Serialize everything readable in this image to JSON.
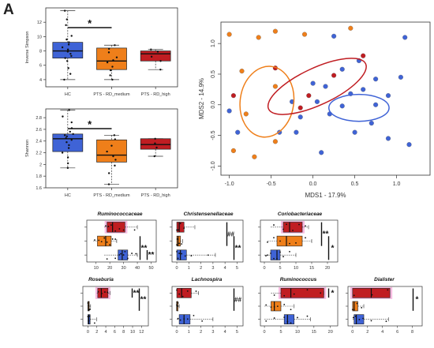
{
  "figure": {
    "panel_label": "A",
    "colors": {
      "hc": "#3f63d6",
      "medium": "#ef7f1a",
      "high": "#c01d22",
      "pink": "#f4a6d7"
    }
  },
  "chart_data": [
    {
      "id": "simpson",
      "type": "box",
      "ylabel": "Inverse Simpson",
      "categories": [
        "HC",
        "PTS - RD_medium",
        "PTS - RD_high"
      ],
      "ylim": [
        3,
        14
      ],
      "yticks": [
        4,
        6,
        8,
        10,
        12
      ],
      "boxes": [
        {
          "q1": 7.0,
          "median": 8.0,
          "q3": 9.2,
          "min": 4.0,
          "max": 13.6,
          "color": "#3f63d6",
          "points": [
            4.0,
            4.8,
            5.6,
            6.6,
            7.0,
            7.3,
            7.6,
            7.9,
            8.0,
            8.2,
            8.5,
            8.9,
            9.2,
            9.6,
            10.1,
            11.6,
            12.4,
            13.6
          ]
        },
        {
          "q1": 5.4,
          "median": 6.6,
          "q3": 8.4,
          "min": 4.0,
          "max": 8.8,
          "color": "#ef7f1a",
          "points": [
            4.0,
            4.6,
            5.3,
            5.8,
            6.4,
            6.7,
            7.1,
            7.8,
            8.3,
            8.8
          ]
        },
        {
          "q1": 6.6,
          "median": 7.6,
          "q3": 8.0,
          "min": 5.4,
          "max": 8.2,
          "color": "#c01d22",
          "points": [
            5.4,
            6.6,
            7.2,
            7.9,
            8.2
          ]
        }
      ],
      "significance": {
        "from": 0,
        "to": 1,
        "label": "*"
      }
    },
    {
      "id": "shannon",
      "type": "box",
      "ylabel": "Shannon",
      "categories": [
        "HC",
        "PTS - RD_medium",
        "PTS - RD_high"
      ],
      "ylim": [
        1.6,
        2.95
      ],
      "yticks": [
        1.6,
        1.8,
        2.0,
        2.2,
        2.4,
        2.6,
        2.8
      ],
      "boxes": [
        {
          "q1": 2.22,
          "median": 2.44,
          "q3": 2.52,
          "min": 1.94,
          "max": 2.93,
          "color": "#3f63d6",
          "points": [
            1.94,
            2.02,
            2.12,
            2.2,
            2.28,
            2.33,
            2.38,
            2.42,
            2.45,
            2.48,
            2.5,
            2.52,
            2.56,
            2.62,
            2.72,
            2.82,
            2.93
          ]
        },
        {
          "q1": 2.04,
          "median": 2.16,
          "q3": 2.42,
          "min": 1.66,
          "max": 2.5,
          "color": "#ef7f1a",
          "points": [
            1.66,
            1.85,
            1.98,
            2.08,
            2.14,
            2.22,
            2.32,
            2.43,
            2.5
          ]
        },
        {
          "q1": 2.26,
          "median": 2.34,
          "q3": 2.44,
          "min": 2.14,
          "max": 2.44,
          "color": "#c01d22",
          "points": [
            2.14,
            2.29,
            2.36,
            2.44
          ]
        }
      ],
      "significance": {
        "from": 0,
        "to": 1,
        "label": "*"
      }
    },
    {
      "id": "mds",
      "type": "scatter",
      "xlabel": "MDS1 - 17.9%",
      "ylabel": "MDS2 - 14.9%",
      "xlim": [
        -1.1,
        1.4
      ],
      "ylim": [
        -1.15,
        1.35
      ],
      "xticks": [
        -1.0,
        -0.5,
        0.0,
        0.5,
        1.0
      ],
      "yticks": [
        -1.0,
        -0.5,
        0.0,
        0.5,
        1.0
      ],
      "series": [
        {
          "color": "#3f63d6",
          "points": [
            [
              0.25,
              1.12
            ],
            [
              1.1,
              1.1
            ],
            [
              0.55,
              0.72
            ],
            [
              0.35,
              0.58
            ],
            [
              1.05,
              0.45
            ],
            [
              0.75,
              0.42
            ],
            [
              0.6,
              0.25
            ],
            [
              0.45,
              0.18
            ],
            [
              0.9,
              0.15
            ],
            [
              0.15,
              0.3
            ],
            [
              0.0,
              0.35
            ],
            [
              0.75,
              0.0
            ],
            [
              0.35,
              -0.02
            ],
            [
              0.05,
              0.05
            ],
            [
              -0.25,
              0.05
            ],
            [
              0.2,
              -0.15
            ],
            [
              -0.15,
              -0.2
            ],
            [
              0.7,
              -0.3
            ],
            [
              0.5,
              -0.45
            ],
            [
              0.9,
              -0.55
            ],
            [
              1.15,
              -0.65
            ],
            [
              0.1,
              -0.78
            ],
            [
              -0.9,
              -0.45
            ],
            [
              -1.0,
              -0.1
            ],
            [
              -0.4,
              -0.45
            ],
            [
              -0.2,
              -0.45
            ]
          ]
        },
        {
          "color": "#ef7f1a",
          "points": [
            [
              -1.0,
              1.15
            ],
            [
              -0.45,
              1.2
            ],
            [
              -0.65,
              1.1
            ],
            [
              -0.1,
              1.15
            ],
            [
              -0.85,
              0.55
            ],
            [
              -0.45,
              0.3
            ],
            [
              -0.8,
              -0.15
            ],
            [
              -0.45,
              -0.6
            ],
            [
              -0.7,
              -0.85
            ],
            [
              -0.95,
              -0.75
            ],
            [
              0.45,
              1.25
            ]
          ]
        },
        {
          "color": "#c01d22",
          "points": [
            [
              -0.45,
              0.6
            ],
            [
              0.25,
              0.48
            ],
            [
              -0.05,
              0.15
            ],
            [
              -0.95,
              0.15
            ],
            [
              -0.15,
              -0.05
            ],
            [
              0.6,
              0.8
            ]
          ]
        }
      ],
      "ellipses": [
        {
          "cx": -0.55,
          "cy": 0.05,
          "rx": 0.32,
          "ry": 0.58,
          "rot": 8,
          "color": "#ef7f1a"
        },
        {
          "cx": 0.05,
          "cy": 0.3,
          "rx": 0.64,
          "ry": 0.3,
          "rot": -25,
          "color": "#c01d22"
        },
        {
          "cx": 0.55,
          "cy": -0.05,
          "rx": 0.36,
          "ry": 0.22,
          "rot": 0,
          "color": "#3f63d6"
        }
      ]
    },
    {
      "id": "ruminococcaceae",
      "type": "hbox",
      "title": "Ruminococcaceae",
      "xlim": [
        5,
        52
      ],
      "xticks": [
        10,
        20,
        30,
        40,
        50
      ],
      "rows": [
        {
          "color": "#c01d22",
          "q1": 18,
          "median": 22,
          "q3": 31,
          "min": 16,
          "max": 40,
          "pink": true,
          "points": [
            17,
            19,
            21,
            24,
            27,
            30,
            38
          ]
        },
        {
          "color": "#ef7f1a",
          "q1": 11,
          "median": 17,
          "q3": 21,
          "min": 8,
          "max": 25,
          "pink": false,
          "points": [
            9,
            12,
            14,
            16,
            18,
            20,
            22,
            24
          ]
        },
        {
          "color": "#3f63d6",
          "q1": 26,
          "median": 29,
          "q3": 33,
          "min": 16,
          "max": 40,
          "pink": false,
          "points": [
            18,
            24,
            27,
            28,
            30,
            31,
            33,
            36,
            39
          ]
        }
      ],
      "sig": [
        {
          "label": "**",
          "rows": [
            1,
            2
          ]
        },
        {
          "label": "**",
          "rows": [
            2,
            2
          ]
        }
      ]
    },
    {
      "id": "christensenellaceae",
      "type": "hbox",
      "title": "Christensenellaceae",
      "xlim": [
        -0.2,
        5.3
      ],
      "xticks": [
        0,
        1,
        2,
        3,
        4,
        5
      ],
      "rows": [
        {
          "color": "#c01d22",
          "q1": 0.0,
          "median": 0.2,
          "q3": 0.6,
          "min": 0,
          "max": 1.5,
          "pink": false,
          "points": [
            0.0,
            0.1,
            0.3,
            0.6
          ]
        },
        {
          "color": "#ef7f1a",
          "q1": 0.0,
          "median": 0.1,
          "q3": 0.3,
          "min": 0,
          "max": 0.5,
          "pink": false,
          "points": [
            0.0,
            0.05,
            0.1,
            0.2,
            0.4
          ]
        },
        {
          "color": "#3f63d6",
          "q1": 0.0,
          "median": 0.3,
          "q3": 0.8,
          "min": 0,
          "max": 3.2,
          "pink": false,
          "points": [
            0.0,
            0.1,
            0.2,
            0.4,
            0.7,
            1.2,
            2.6
          ]
        }
      ],
      "sig": [
        {
          "label": "##",
          "rows": [
            0,
            1
          ]
        },
        {
          "label": "**",
          "rows": [
            1,
            2
          ]
        }
      ]
    },
    {
      "id": "coriobacteriaceae",
      "type": "hbox",
      "title": "Coriobacteriaceae",
      "xlim": [
        -0.5,
        22.5
      ],
      "xticks": [
        0,
        5,
        10,
        15,
        20
      ],
      "rows": [
        {
          "color": "#c01d22",
          "q1": 6,
          "median": 8,
          "q3": 12,
          "min": 2,
          "max": 14,
          "pink": true,
          "points": [
            3,
            6,
            7,
            9,
            11,
            13
          ]
        },
        {
          "color": "#ef7f1a",
          "q1": 4,
          "median": 7,
          "q3": 12,
          "min": 1,
          "max": 15,
          "pink": false,
          "points": [
            1,
            3,
            5,
            8,
            10,
            13
          ]
        },
        {
          "color": "#3f63d6",
          "q1": 2,
          "median": 4,
          "q3": 5,
          "min": 0,
          "max": 10,
          "pink": false,
          "points": [
            0.5,
            1,
            2,
            3,
            4,
            5,
            6,
            8
          ]
        }
      ],
      "sig": [
        {
          "label": "**",
          "rows": [
            0,
            1
          ]
        },
        {
          "label": "*",
          "rows": [
            1,
            2
          ]
        }
      ]
    },
    {
      "id": "roseburia",
      "type": "hbox",
      "title": "Roseburia",
      "xlim": [
        -0.6,
        13
      ],
      "xticks": [
        0,
        2,
        4,
        6,
        8,
        10,
        12
      ],
      "rows": [
        {
          "color": "#c01d22",
          "q1": 2.2,
          "median": 3.0,
          "q3": 4.5,
          "min": 2.0,
          "max": 5.0,
          "pink": true,
          "points": [
            2.3,
            3.1,
            3.8,
            4.4
          ]
        },
        {
          "color": "#ef7f1a",
          "q1": 0.0,
          "median": 0.1,
          "q3": 0.3,
          "min": 0,
          "max": 0.6,
          "pink": false,
          "points": [
            0.0,
            0.1,
            0.3,
            0.5
          ]
        },
        {
          "color": "#3f63d6",
          "q1": 0.0,
          "median": 0.2,
          "q3": 0.5,
          "min": 0,
          "max": 2.0,
          "pink": false,
          "points": [
            0.0,
            0.2,
            0.4,
            1.5
          ]
        }
      ],
      "sig": [
        {
          "label": "**",
          "rows": [
            0,
            0
          ]
        },
        {
          "label": "**",
          "rows": [
            0,
            1
          ]
        }
      ]
    },
    {
      "id": "lachnospira",
      "type": "hbox",
      "title": "Lachnospira",
      "xlim": [
        -0.2,
        5.3
      ],
      "xticks": [
        0,
        1,
        2,
        3,
        4,
        5
      ],
      "rows": [
        {
          "color": "#c01d22",
          "q1": 0.0,
          "median": 0.4,
          "q3": 1.2,
          "min": 0,
          "max": 1.8,
          "pink": false,
          "points": [
            0.0,
            0.2,
            0.5,
            0.9,
            1.6
          ]
        },
        {
          "color": "#ef7f1a",
          "q1": 0.0,
          "median": 0.0,
          "q3": 0.1,
          "min": 0,
          "max": 0.2,
          "pink": false,
          "points": [
            0.0,
            0.05,
            0.1
          ]
        },
        {
          "color": "#3f63d6",
          "q1": 0.2,
          "median": 0.6,
          "q3": 1.1,
          "min": 0,
          "max": 3.0,
          "pink": false,
          "points": [
            0.1,
            0.3,
            0.6,
            0.9,
            1.4,
            2.1
          ]
        }
      ],
      "sig": [
        {
          "label": "##",
          "rows": [
            0,
            1
          ]
        }
      ]
    },
    {
      "id": "ruminococcus",
      "type": "hbox",
      "title": "Ruminococcus",
      "xlim": [
        -0.5,
        21.5
      ],
      "xticks": [
        0,
        5,
        10,
        15,
        20
      ],
      "rows": [
        {
          "color": "#c01d22",
          "q1": 5,
          "median": 8,
          "q3": 18,
          "min": 2,
          "max": 18,
          "pink": true,
          "points": [
            3,
            6,
            9,
            13,
            17
          ]
        },
        {
          "color": "#ef7f1a",
          "q1": 2,
          "median": 3,
          "q3": 5,
          "min": 0,
          "max": 9,
          "pink": false,
          "points": [
            0.5,
            2,
            3,
            4,
            6,
            8
          ]
        },
        {
          "color": "#3f63d6",
          "q1": 6,
          "median": 7,
          "q3": 9,
          "min": 0,
          "max": 14,
          "pink": false,
          "points": [
            0.5,
            3,
            6,
            7,
            8,
            10,
            13
          ]
        }
      ],
      "sig": [
        {
          "label": "*",
          "rows": [
            0,
            0
          ]
        }
      ]
    },
    {
      "id": "dialister",
      "type": "hbox",
      "title": "Dialister",
      "xlim": [
        -0.3,
        9.0
      ],
      "xticks": [
        0,
        2,
        4,
        6,
        8
      ],
      "rows": [
        {
          "color": "#c01d22",
          "q1": 0.0,
          "median": 2.5,
          "q3": 5.0,
          "min": 0,
          "max": 5.0,
          "pink": true,
          "points": [
            0.2,
            2.6,
            4.7
          ]
        },
        {
          "color": "#ef7f1a",
          "q1": 0.0,
          "median": 0.2,
          "q3": 0.7,
          "min": 0,
          "max": 1.5,
          "pink": false,
          "points": [
            0.0,
            0.2,
            0.6,
            1.2
          ]
        },
        {
          "color": "#3f63d6",
          "q1": 0.2,
          "median": 0.5,
          "q3": 1.5,
          "min": 0,
          "max": 4.8,
          "pink": false,
          "points": [
            0.1,
            0.4,
            0.9,
            1.4,
            2.5,
            4.5
          ]
        }
      ],
      "sig": [
        {
          "label": "*",
          "rows": [
            0,
            1
          ]
        }
      ]
    }
  ]
}
